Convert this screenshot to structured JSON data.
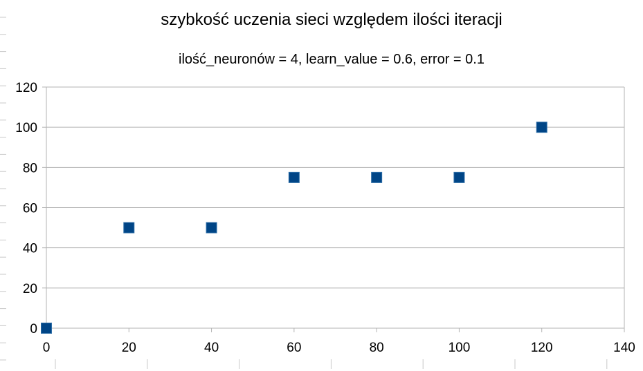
{
  "chart_data": {
    "type": "scatter",
    "title": "szybkość uczenia sieci względem ilości iteracji",
    "subtitle": "ilość_neuronów = 4, learn_value = 0.6, error = 0.1",
    "xlabel": "",
    "ylabel": "",
    "xlim": [
      0,
      140
    ],
    "ylim": [
      0,
      120
    ],
    "xticks": [
      "0",
      "20",
      "40",
      "60",
      "80",
      "100",
      "120",
      "140"
    ],
    "yticks": [
      "0",
      "20",
      "40",
      "60",
      "80",
      "100",
      "120"
    ],
    "grid": "horizontal",
    "legend": "none",
    "marker": "square",
    "marker_color": "#004586",
    "series": [
      {
        "x": [
          0,
          20,
          40,
          60,
          80,
          100,
          120
        ],
        "y": [
          0,
          50,
          50,
          75,
          75,
          75,
          100
        ]
      }
    ]
  }
}
